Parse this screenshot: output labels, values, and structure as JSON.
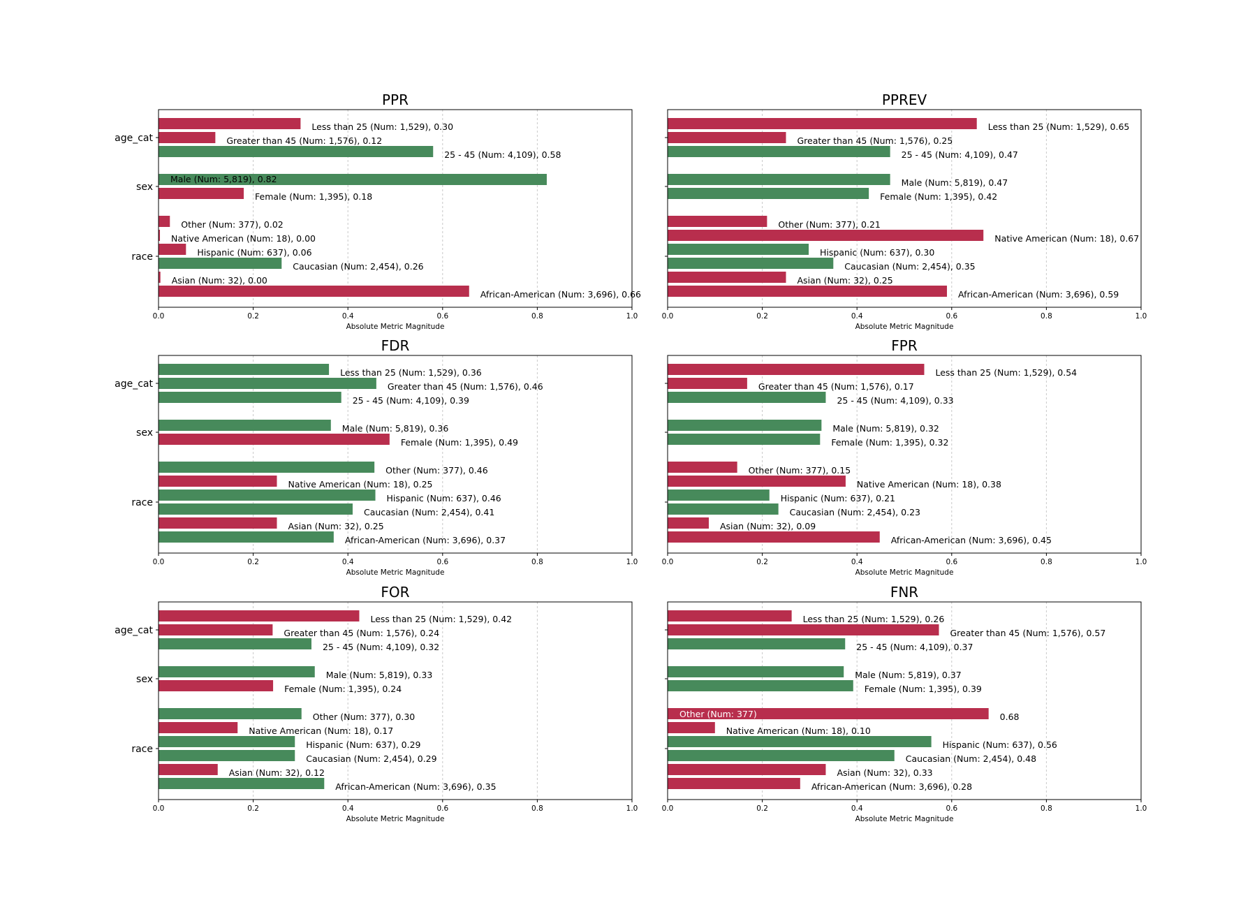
{
  "colors": {
    "favorable": "#478a5b",
    "unfavorable": "#b82e4d",
    "grid": "#c8c8c8"
  },
  "chart_data": [
    {
      "type": "bar",
      "title": "PPR",
      "xlabel": "Absolute Metric Magnitude",
      "xlim": [
        0,
        1
      ],
      "xticks": [
        "0.0",
        "0.2",
        "0.4",
        "0.6",
        "0.8",
        "1.0"
      ],
      "grid": true,
      "groups": [
        {
          "name": "age_cat",
          "bars": [
            {
              "label": "Less than 25 (Num: 1,529), 0.30",
              "value": 0.3,
              "status": "unfavorable"
            },
            {
              "label": "Greater than 45 (Num: 1,576), 0.12",
              "value": 0.12,
              "status": "unfavorable"
            },
            {
              "label": "25 - 45 (Num: 4,109), 0.58",
              "value": 0.58,
              "status": "favorable"
            }
          ]
        },
        {
          "name": "sex",
          "bars": [
            {
              "label": "Male (Num: 5,819), 0.82",
              "value": 0.82,
              "status": "favorable",
              "inside": true
            },
            {
              "label": "Female (Num: 1,395), 0.18",
              "value": 0.18,
              "status": "unfavorable"
            }
          ]
        },
        {
          "name": "race",
          "bars": [
            {
              "label": "Other (Num: 377), 0.02",
              "value": 0.024,
              "status": "unfavorable"
            },
            {
              "label": "Native American (Num: 18), 0.00",
              "value": 0.003,
              "status": "unfavorable"
            },
            {
              "label": "Hispanic (Num: 637), 0.06",
              "value": 0.058,
              "status": "unfavorable"
            },
            {
              "label": "Caucasian (Num: 2,454), 0.26",
              "value": 0.26,
              "status": "favorable"
            },
            {
              "label": "Asian (Num: 32), 0.00",
              "value": 0.004,
              "status": "unfavorable"
            },
            {
              "label": "African-American (Num: 3,696), 0.66",
              "value": 0.656,
              "status": "unfavorable"
            }
          ]
        }
      ]
    },
    {
      "type": "bar",
      "title": "PPREV",
      "xlabel": "Absolute Metric Magnitude",
      "xlim": [
        0,
        1
      ],
      "xticks": [
        "0.0",
        "0.2",
        "0.4",
        "0.6",
        "0.8",
        "1.0"
      ],
      "grid": true,
      "groups": [
        {
          "name": "age_cat",
          "bars": [
            {
              "label": "Less than 25 (Num: 1,529), 0.65",
              "value": 0.653,
              "status": "unfavorable"
            },
            {
              "label": "Greater than 45 (Num: 1,576), 0.25",
              "value": 0.25,
              "status": "unfavorable"
            },
            {
              "label": "25 - 45 (Num: 4,109), 0.47",
              "value": 0.47,
              "status": "favorable"
            }
          ]
        },
        {
          "name": "sex",
          "bars": [
            {
              "label": "Male (Num: 5,819), 0.47",
              "value": 0.47,
              "status": "favorable"
            },
            {
              "label": "Female (Num: 1,395), 0.42",
              "value": 0.425,
              "status": "favorable"
            }
          ]
        },
        {
          "name": "race",
          "bars": [
            {
              "label": "Other (Num: 377), 0.21",
              "value": 0.21,
              "status": "unfavorable"
            },
            {
              "label": "Native American (Num: 18), 0.67",
              "value": 0.667,
              "status": "unfavorable"
            },
            {
              "label": "Hispanic (Num: 637), 0.30",
              "value": 0.298,
              "status": "favorable"
            },
            {
              "label": "Caucasian (Num: 2,454), 0.35",
              "value": 0.35,
              "status": "favorable"
            },
            {
              "label": "Asian (Num: 32), 0.25",
              "value": 0.25,
              "status": "unfavorable"
            },
            {
              "label": "African-American (Num: 3,696), 0.59",
              "value": 0.59,
              "status": "unfavorable"
            }
          ]
        }
      ]
    },
    {
      "type": "bar",
      "title": "FDR",
      "xlabel": "Absolute Metric Magnitude",
      "xlim": [
        0,
        1
      ],
      "xticks": [
        "0.0",
        "0.2",
        "0.4",
        "0.6",
        "0.8",
        "1.0"
      ],
      "grid": true,
      "groups": [
        {
          "name": "age_cat",
          "bars": [
            {
              "label": "Less than 25 (Num: 1,529), 0.36",
              "value": 0.36,
              "status": "favorable"
            },
            {
              "label": "Greater than 45 (Num: 1,576), 0.46",
              "value": 0.46,
              "status": "favorable"
            },
            {
              "label": "25 - 45 (Num: 4,109), 0.39",
              "value": 0.386,
              "status": "favorable"
            }
          ]
        },
        {
          "name": "sex",
          "bars": [
            {
              "label": "Male (Num: 5,819), 0.36",
              "value": 0.364,
              "status": "favorable"
            },
            {
              "label": "Female (Num: 1,395), 0.49",
              "value": 0.488,
              "status": "unfavorable"
            }
          ]
        },
        {
          "name": "race",
          "bars": [
            {
              "label": "Other (Num: 377), 0.46",
              "value": 0.456,
              "status": "favorable"
            },
            {
              "label": "Native American (Num: 18), 0.25",
              "value": 0.25,
              "status": "unfavorable"
            },
            {
              "label": "Hispanic (Num: 637), 0.46",
              "value": 0.458,
              "status": "favorable"
            },
            {
              "label": "Caucasian (Num: 2,454), 0.41",
              "value": 0.41,
              "status": "favorable"
            },
            {
              "label": "Asian (Num: 32), 0.25",
              "value": 0.25,
              "status": "unfavorable"
            },
            {
              "label": "African-American (Num: 3,696), 0.37",
              "value": 0.37,
              "status": "favorable"
            }
          ]
        }
      ]
    },
    {
      "type": "bar",
      "title": "FPR",
      "xlabel": "Absolute Metric Magnitude",
      "xlim": [
        0,
        1
      ],
      "xticks": [
        "0.0",
        "0.2",
        "0.4",
        "0.6",
        "0.8",
        "1.0"
      ],
      "grid": true,
      "groups": [
        {
          "name": "age_cat",
          "bars": [
            {
              "label": "Less than 25 (Num: 1,529), 0.54",
              "value": 0.542,
              "status": "unfavorable"
            },
            {
              "label": "Greater than 45 (Num: 1,576), 0.17",
              "value": 0.168,
              "status": "unfavorable"
            },
            {
              "label": "25 - 45 (Num: 4,109), 0.33",
              "value": 0.334,
              "status": "favorable"
            }
          ]
        },
        {
          "name": "sex",
          "bars": [
            {
              "label": "Male (Num: 5,819), 0.32",
              "value": 0.325,
              "status": "favorable"
            },
            {
              "label": "Female (Num: 1,395), 0.32",
              "value": 0.322,
              "status": "favorable"
            }
          ]
        },
        {
          "name": "race",
          "bars": [
            {
              "label": "Other (Num: 377), 0.15",
              "value": 0.147,
              "status": "unfavorable"
            },
            {
              "label": "Native American (Num: 18), 0.38",
              "value": 0.376,
              "status": "unfavorable"
            },
            {
              "label": "Hispanic (Num: 637), 0.21",
              "value": 0.215,
              "status": "favorable"
            },
            {
              "label": "Caucasian (Num: 2,454), 0.23",
              "value": 0.234,
              "status": "favorable"
            },
            {
              "label": "Asian (Num: 32), 0.09",
              "value": 0.087,
              "status": "unfavorable"
            },
            {
              "label": "African-American (Num: 3,696), 0.45",
              "value": 0.448,
              "status": "unfavorable"
            }
          ]
        }
      ]
    },
    {
      "type": "bar",
      "title": "FOR",
      "xlabel": "Absolute Metric Magnitude",
      "xlim": [
        0,
        1
      ],
      "xticks": [
        "0.0",
        "0.2",
        "0.4",
        "0.6",
        "0.8",
        "1.0"
      ],
      "grid": true,
      "groups": [
        {
          "name": "age_cat",
          "bars": [
            {
              "label": "Less than 25 (Num: 1,529), 0.42",
              "value": 0.424,
              "status": "unfavorable"
            },
            {
              "label": "Greater than 45 (Num: 1,576), 0.24",
              "value": 0.241,
              "status": "unfavorable"
            },
            {
              "label": "25 - 45 (Num: 4,109), 0.32",
              "value": 0.323,
              "status": "favorable"
            }
          ]
        },
        {
          "name": "sex",
          "bars": [
            {
              "label": "Male (Num: 5,819), 0.33",
              "value": 0.33,
              "status": "favorable"
            },
            {
              "label": "Female (Num: 1,395), 0.24",
              "value": 0.242,
              "status": "unfavorable"
            }
          ]
        },
        {
          "name": "race",
          "bars": [
            {
              "label": "Other (Num: 377), 0.30",
              "value": 0.302,
              "status": "favorable"
            },
            {
              "label": "Native American (Num: 18), 0.17",
              "value": 0.167,
              "status": "unfavorable"
            },
            {
              "label": "Hispanic (Num: 637), 0.29",
              "value": 0.288,
              "status": "favorable"
            },
            {
              "label": "Caucasian (Num: 2,454), 0.29",
              "value": 0.288,
              "status": "favorable"
            },
            {
              "label": "Asian (Num: 32), 0.12",
              "value": 0.125,
              "status": "unfavorable"
            },
            {
              "label": "African-American (Num: 3,696), 0.35",
              "value": 0.35,
              "status": "favorable"
            }
          ]
        }
      ]
    },
    {
      "type": "bar",
      "title": "FNR",
      "xlabel": "Absolute Metric Magnitude",
      "xlim": [
        0,
        1
      ],
      "xticks": [
        "0.0",
        "0.2",
        "0.4",
        "0.6",
        "0.8",
        "1.0"
      ],
      "grid": true,
      "groups": [
        {
          "name": "age_cat",
          "bars": [
            {
              "label": "Less than 25 (Num: 1,529), 0.26",
              "value": 0.262,
              "status": "unfavorable"
            },
            {
              "label": "Greater than 45 (Num: 1,576), 0.57",
              "value": 0.573,
              "status": "unfavorable"
            },
            {
              "label": "25 - 45 (Num: 4,109), 0.37",
              "value": 0.375,
              "status": "favorable"
            }
          ]
        },
        {
          "name": "sex",
          "bars": [
            {
              "label": "Male (Num: 5,819), 0.37",
              "value": 0.372,
              "status": "favorable"
            },
            {
              "label": "Female (Num: 1,395), 0.39",
              "value": 0.392,
              "status": "favorable"
            }
          ]
        },
        {
          "name": "race",
          "bars": [
            {
              "label": "0.68",
              "value": 0.678,
              "status": "unfavorable",
              "inside_label": "Other (Num: 377)"
            },
            {
              "label": "Native American (Num: 18), 0.10",
              "value": 0.1,
              "status": "unfavorable"
            },
            {
              "label": "Hispanic (Num: 637), 0.56",
              "value": 0.557,
              "status": "favorable"
            },
            {
              "label": "Caucasian (Num: 2,454), 0.48",
              "value": 0.479,
              "status": "favorable"
            },
            {
              "label": "Asian (Num: 32), 0.33",
              "value": 0.334,
              "status": "unfavorable"
            },
            {
              "label": "African-American (Num: 3,696), 0.28",
              "value": 0.28,
              "status": "unfavorable"
            }
          ]
        }
      ]
    }
  ]
}
